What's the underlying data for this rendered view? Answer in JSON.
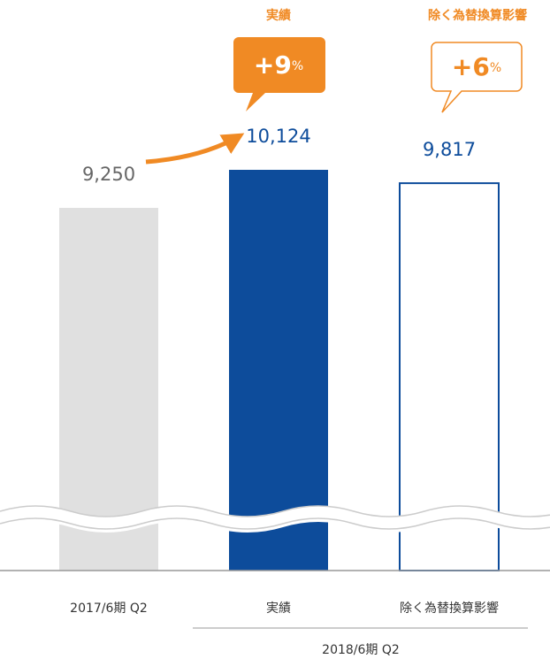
{
  "chart_data": {
    "type": "bar",
    "categories": [
      "2017/6期 Q2",
      "実績",
      "除く為替換算影響"
    ],
    "values": [
      9250,
      10124,
      9817
    ],
    "value_labels": [
      "9,250",
      "10,124",
      "9,817"
    ],
    "colors": [
      "#e0e0e0",
      "#0d4c9b",
      "#ffffff"
    ],
    "group_label": "2018/6期 Q2",
    "callouts": [
      {
        "title": "実績",
        "text": "+9",
        "unit": "%"
      },
      {
        "title": "除く為替換算影響",
        "text": "+6",
        "unit": "%"
      }
    ]
  }
}
